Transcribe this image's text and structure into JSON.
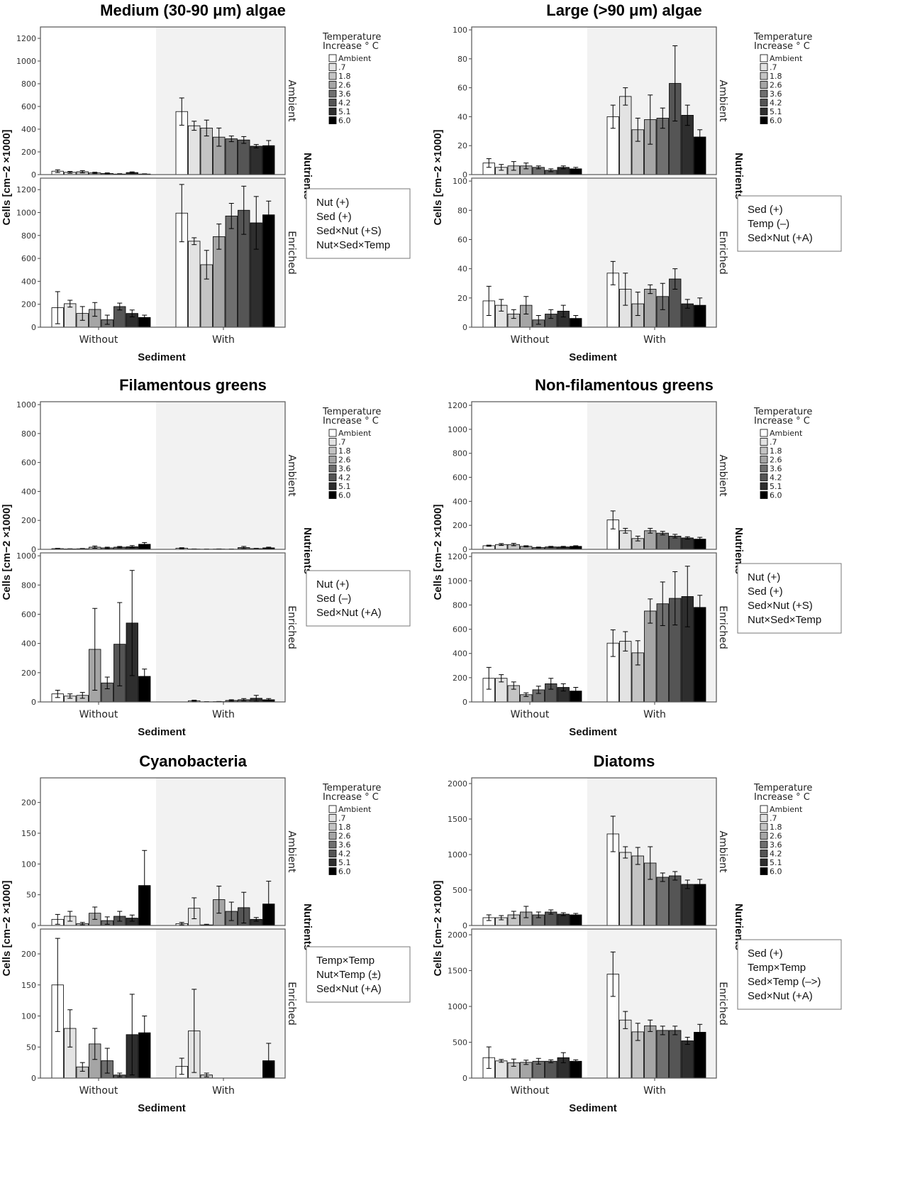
{
  "colors": {
    "temperature_fills": [
      "#ffffff",
      "#e3e3e3",
      "#c4c4c4",
      "#a5a5a5",
      "#6f6f6f",
      "#555555",
      "#2e2e2e",
      "#000000"
    ],
    "with_sediment_shading": "#f2f2f2",
    "frame": "#555555"
  },
  "legend": {
    "title_line1": "Temperature",
    "title_line2": "Increase ° C",
    "items": [
      "Ambient",
      ".7",
      "1.8",
      "2.6",
      "3.6",
      "4.2",
      "5.1",
      "6.0"
    ]
  },
  "chart_data": [
    {
      "type": "bar",
      "title": "Medium (30-90 μm) algae",
      "xlabel": "Sediment",
      "ylabel": "Cells [cm−2 ×1000]",
      "facet_label": "Nutrients",
      "facets": [
        "Ambient",
        "Enriched"
      ],
      "categories": [
        "Without",
        "With"
      ],
      "series_names": [
        "Ambient",
        ".7",
        "1.8",
        "2.6",
        "3.6",
        "4.2",
        "5.1",
        "6.0"
      ],
      "ylim": [
        0,
        1300
      ],
      "yticks": [
        0,
        200,
        400,
        600,
        800,
        1000,
        1200
      ],
      "values": {
        "Ambient": {
          "Without": [
            30,
            20,
            25,
            15,
            10,
            5,
            18,
            5
          ],
          "With": [
            555,
            430,
            410,
            330,
            315,
            305,
            250,
            255
          ]
        },
        "Enriched": {
          "Without": [
            170,
            205,
            120,
            155,
            65,
            180,
            120,
            85
          ],
          "With": [
            995,
            750,
            545,
            790,
            970,
            1020,
            910,
            980
          ]
        }
      },
      "errors": {
        "Ambient": {
          "Without": [
            12,
            8,
            10,
            6,
            5,
            3,
            6,
            2
          ],
          "With": [
            120,
            40,
            70,
            80,
            25,
            30,
            15,
            45
          ]
        },
        "Enriched": {
          "Without": [
            140,
            30,
            60,
            60,
            40,
            30,
            30,
            20
          ],
          "With": [
            250,
            30,
            125,
            110,
            110,
            210,
            230,
            120
          ]
        }
      },
      "stats_box": [
        "Nut (+)",
        "Sed (+)",
        "Sed×Nut (+S)",
        "Nut×Sed×Temp"
      ]
    },
    {
      "type": "bar",
      "title": "Large (>90 μm) algae",
      "xlabel": "Sediment",
      "ylabel": "Cells [cm−2 ×1000]",
      "facet_label": "Nutrients",
      "facets": [
        "Ambient",
        "Enriched"
      ],
      "categories": [
        "Without",
        "With"
      ],
      "series_names": [
        "Ambient",
        ".7",
        "1.8",
        "2.6",
        "3.6",
        "4.2",
        "5.1",
        "6.0"
      ],
      "ylim": [
        0,
        102
      ],
      "yticks": [
        0,
        20,
        40,
        60,
        80,
        100
      ],
      "values": {
        "Ambient": {
          "Without": [
            8,
            5,
            6,
            6,
            5,
            3,
            5,
            4
          ],
          "With": [
            40,
            54,
            31,
            38,
            39,
            63,
            41,
            26
          ]
        },
        "Enriched": {
          "Without": [
            18,
            15,
            9,
            15,
            5,
            9,
            11,
            6
          ],
          "With": [
            37,
            26,
            16,
            26,
            21,
            33,
            16,
            15
          ]
        }
      },
      "errors": {
        "Ambient": {
          "Without": [
            3,
            2,
            3,
            2,
            1,
            1,
            1,
            1
          ],
          "With": [
            8,
            6,
            8,
            17,
            7,
            26,
            7,
            5
          ]
        },
        "Enriched": {
          "Without": [
            10,
            4,
            3,
            6,
            3,
            3,
            4,
            2
          ],
          "With": [
            8,
            11,
            8,
            3,
            9,
            7,
            3,
            5
          ]
        }
      },
      "stats_box": [
        "Sed (+)",
        "Temp (–)",
        "Sed×Nut (+A)"
      ]
    },
    {
      "type": "bar",
      "title": "Filamentous greens",
      "xlabel": "Sediment",
      "ylabel": "Cells [cm−2 ×1000]",
      "facet_label": "Nutrients",
      "facets": [
        "Ambient",
        "Enriched"
      ],
      "categories": [
        "Without",
        "With"
      ],
      "series_names": [
        "Ambient",
        ".7",
        "1.8",
        "2.6",
        "3.6",
        "4.2",
        "5.1",
        "6.0"
      ],
      "ylim": [
        0,
        1020
      ],
      "yticks": [
        0,
        200,
        400,
        600,
        800,
        1000
      ],
      "values": {
        "Ambient": {
          "Without": [
            5,
            3,
            4,
            15,
            10,
            15,
            18,
            35
          ],
          "With": [
            8,
            2,
            1,
            2,
            1,
            12,
            5,
            10
          ]
        },
        "Enriched": {
          "Without": [
            55,
            40,
            45,
            360,
            130,
            395,
            540,
            175
          ],
          "With": [
            0,
            8,
            1,
            2,
            10,
            15,
            25,
            15
          ]
        }
      },
      "errors": {
        "Ambient": {
          "Without": [
            2,
            1,
            2,
            8,
            5,
            5,
            8,
            12
          ],
          "With": [
            3,
            1,
            1,
            1,
            1,
            8,
            2,
            5
          ]
        },
        "Enriched": {
          "Without": [
            25,
            15,
            20,
            280,
            40,
            285,
            360,
            50
          ],
          "With": [
            0,
            4,
            1,
            1,
            5,
            8,
            20,
            8
          ]
        }
      },
      "stats_box": [
        "Nut (+)",
        "Sed (–)",
        "Sed×Nut (+A)"
      ]
    },
    {
      "type": "bar",
      "title": "Non-filamentous greens",
      "xlabel": "Sediment",
      "ylabel": "Cells [cm−2 ×1000]",
      "facet_label": "Nutrients",
      "facets": [
        "Ambient",
        "Enriched"
      ],
      "categories": [
        "Without",
        "With"
      ],
      "series_names": [
        "Ambient",
        ".7",
        "1.8",
        "2.6",
        "3.6",
        "4.2",
        "5.1",
        "6.0"
      ],
      "ylim": [
        0,
        1230
      ],
      "yticks": [
        0,
        200,
        400,
        600,
        800,
        1000,
        1200
      ],
      "values": {
        "Ambient": {
          "Without": [
            30,
            40,
            40,
            25,
            15,
            20,
            20,
            25
          ],
          "With": [
            245,
            155,
            90,
            155,
            135,
            110,
            95,
            85
          ]
        },
        "Enriched": {
          "Without": [
            195,
            195,
            135,
            60,
            100,
            150,
            120,
            90
          ],
          "With": [
            485,
            500,
            405,
            750,
            810,
            855,
            870,
            780
          ]
        }
      },
      "errors": {
        "Ambient": {
          "Without": [
            5,
            8,
            10,
            5,
            4,
            5,
            5,
            5
          ],
          "With": [
            75,
            20,
            20,
            20,
            15,
            15,
            10,
            15
          ]
        },
        "Enriched": {
          "Without": [
            90,
            30,
            30,
            15,
            30,
            45,
            30,
            30
          ],
          "With": [
            110,
            80,
            100,
            100,
            180,
            220,
            250,
            100
          ]
        }
      },
      "stats_box": [
        "Nut (+)",
        "Sed (+)",
        "Sed×Nut (+S)",
        "Nut×Sed×Temp"
      ]
    },
    {
      "type": "bar",
      "title": "Cyanobacteria",
      "xlabel": "Sediment",
      "ylabel": "Cells [cm−2 ×1000]",
      "facet_label": "Nutrients",
      "facets": [
        "Ambient",
        "Enriched"
      ],
      "categories": [
        "Without",
        "With"
      ],
      "series_names": [
        "Ambient",
        ".7",
        "1.8",
        "2.6",
        "3.6",
        "4.2",
        "5.1",
        "6.0"
      ],
      "ylim": [
        0,
        240
      ],
      "yticks": [
        0,
        50,
        100,
        150,
        200
      ],
      "values": {
        "Ambient": {
          "Without": [
            10,
            15,
            3,
            20,
            8,
            15,
            12,
            65
          ],
          "With": [
            3,
            28,
            1,
            42,
            23,
            29,
            10,
            35
          ]
        },
        "Enriched": {
          "Without": [
            150,
            80,
            18,
            55,
            28,
            5,
            70,
            73
          ],
          "With": [
            19,
            76,
            5,
            0,
            0,
            0,
            0,
            28
          ]
        }
      },
      "errors": {
        "Ambient": {
          "Without": [
            8,
            8,
            2,
            10,
            6,
            8,
            5,
            57
          ],
          "With": [
            2,
            17,
            1,
            22,
            15,
            25,
            3,
            37
          ]
        },
        "Enriched": {
          "Without": [
            75,
            30,
            7,
            25,
            20,
            3,
            65,
            27
          ],
          "With": [
            13,
            67,
            3,
            0,
            0,
            0,
            0,
            28
          ]
        }
      },
      "stats_box": [
        "Temp×Temp",
        "Nut×Temp (±)",
        "Sed×Nut (+A)"
      ]
    },
    {
      "type": "bar",
      "title": "Diatoms",
      "xlabel": "Sediment",
      "ylabel": "Cells [cm−2 ×1000]",
      "facet_label": "Nutrients",
      "facets": [
        "Ambient",
        "Enriched"
      ],
      "categories": [
        "Without",
        "With"
      ],
      "series_names": [
        "Ambient",
        ".7",
        "1.8",
        "2.6",
        "3.6",
        "4.2",
        "5.1",
        "6.0"
      ],
      "ylim": [
        0,
        2080
      ],
      "yticks": [
        0,
        500,
        1000,
        1500,
        2000
      ],
      "values": {
        "Ambient": {
          "Without": [
            110,
            110,
            150,
            190,
            150,
            190,
            160,
            150
          ],
          "With": [
            1290,
            1030,
            980,
            880,
            680,
            700,
            580,
            580
          ]
        },
        "Enriched": {
          "Without": [
            285,
            240,
            215,
            220,
            235,
            235,
            285,
            235
          ],
          "With": [
            1450,
            810,
            645,
            730,
            665,
            665,
            520,
            640
          ]
        }
      },
      "errors": {
        "Ambient": {
          "Without": [
            40,
            30,
            50,
            80,
            40,
            30,
            20,
            20
          ],
          "With": [
            250,
            80,
            120,
            230,
            60,
            60,
            60,
            70
          ]
        },
        "Enriched": {
          "Without": [
            150,
            20,
            50,
            30,
            40,
            20,
            70,
            20
          ],
          "With": [
            310,
            120,
            120,
            80,
            60,
            60,
            50,
            110
          ]
        }
      },
      "stats_box": [
        "Sed (+)",
        "Temp×Temp",
        "Sed×Temp (–>)",
        "Sed×Nut (+A)"
      ]
    }
  ]
}
